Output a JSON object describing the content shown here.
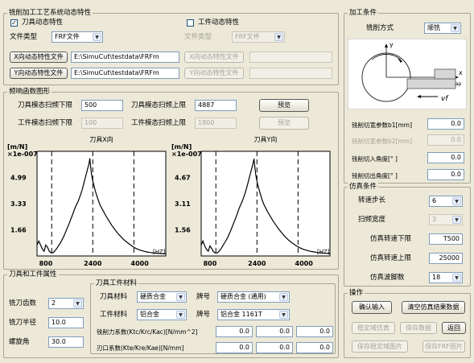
{
  "left_top": {
    "group_title": "铣削加工工艺系统动态特性",
    "tool_dynamic": {
      "checked": true,
      "label": "刀具动态特性"
    },
    "workpiece_dynamic": {
      "checked": false,
      "label": "工件动态特性"
    },
    "file_type_label": "文件类型",
    "file_type_value": "FRF文件",
    "wp_file_type_label": "文件类型",
    "wp_file_type_value": "FRF文件",
    "x_file_button": "X向动态特性文件",
    "x_file_path": "E:\\SimuCut\\testdata\\FRFm",
    "y_file_button": "Y向动态特性文件",
    "y_file_path": "E:\\SimuCut\\testdata\\FRFm",
    "wp_x_file_button": "X向动态特性文件",
    "wp_y_file_button": "Y向动态特性文件"
  },
  "frf": {
    "group_title": "频响函数图形",
    "tool_low_label": "刀具模态扫频下限",
    "tool_low_value": "500",
    "tool_high_label": "刀具模态扫频上限",
    "tool_high_value": "4887",
    "preview_button": "预览",
    "wp_low_label": "工件模态扫频下限",
    "wp_low_value": "100",
    "wp_high_label": "工件模态扫频上限",
    "wp_high_value": "1800",
    "wp_preview_button": "预览"
  },
  "chart_data": [
    {
      "type": "line",
      "title": "刀具X向",
      "ylabel_unit": "[m/N]",
      "ylabel_scale": "×1e-007",
      "xlabel": "[HZ]",
      "y_ticks": [
        "4.99",
        "3.33",
        "1.66"
      ],
      "x_ticks": [
        "800",
        "2400",
        "4000"
      ],
      "xlim": [
        500,
        4887
      ],
      "ylim": [
        0,
        6.7
      ],
      "dashed_x": [
        1000,
        2400,
        3800
      ],
      "x": [
        500,
        560,
        620,
        680,
        740,
        800,
        860,
        920,
        980,
        1040,
        1120,
        1200,
        1300,
        1400,
        1500,
        1600,
        1700,
        1800,
        1900,
        1980,
        2040,
        2100,
        2160,
        2220,
        2270,
        2300,
        2330,
        2360,
        2400,
        2440,
        2480,
        2530,
        2580,
        2650,
        2750,
        2850,
        2950,
        3050,
        3150,
        3250,
        3350,
        3450,
        3550,
        3650,
        3750,
        3850,
        3950,
        4050,
        4150,
        4250,
        4350,
        4450,
        4550,
        4650,
        4750,
        4887
      ],
      "y": [
        0.7,
        0.95,
        0.7,
        0.45,
        0.3,
        0.7,
        0.55,
        0.3,
        0.2,
        0.2,
        0.35,
        0.55,
        0.85,
        1.2,
        1.65,
        2.1,
        2.6,
        3.1,
        3.5,
        3.9,
        4.25,
        4.7,
        5.1,
        5.55,
        5.9,
        6.25,
        5.7,
        5.2,
        4.8,
        4.5,
        4.2,
        3.9,
        3.6,
        3.25,
        2.9,
        2.55,
        2.25,
        1.95,
        1.7,
        1.45,
        1.25,
        1.05,
        0.9,
        0.75,
        0.62,
        0.5,
        0.42,
        0.35,
        0.3,
        0.25,
        0.22,
        0.2,
        0.18,
        0.16,
        0.15,
        0.14
      ]
    },
    {
      "type": "line",
      "title": "刀具Y向",
      "ylabel_unit": "[m/N]",
      "ylabel_scale": "×1e-007",
      "xlabel": "[HZ]",
      "y_ticks": [
        "4.67",
        "3.11",
        "1.56"
      ],
      "x_ticks": [
        "800",
        "2400",
        "4000"
      ],
      "xlim": [
        500,
        4887
      ],
      "ylim": [
        0,
        6.3
      ],
      "dashed_x": [
        1000,
        2400,
        3800
      ],
      "x": [
        500,
        560,
        620,
        680,
        740,
        800,
        860,
        920,
        980,
        1040,
        1120,
        1200,
        1300,
        1400,
        1500,
        1600,
        1700,
        1800,
        1900,
        1980,
        2040,
        2100,
        2160,
        2220,
        2270,
        2300,
        2330,
        2360,
        2400,
        2440,
        2480,
        2530,
        2580,
        2650,
        2750,
        2850,
        2950,
        3050,
        3150,
        3250,
        3350,
        3450,
        3550,
        3650,
        3750,
        3850,
        3950,
        4050,
        4150,
        4250,
        4350,
        4450,
        4550,
        4650,
        4750,
        4887
      ],
      "y": [
        0.65,
        0.9,
        0.6,
        0.4,
        0.28,
        0.6,
        0.45,
        0.25,
        0.18,
        0.18,
        0.3,
        0.5,
        0.8,
        1.1,
        1.5,
        1.95,
        2.4,
        2.9,
        3.3,
        3.7,
        4.05,
        4.45,
        4.85,
        5.25,
        5.6,
        5.85,
        5.35,
        4.9,
        4.5,
        4.2,
        3.95,
        3.65,
        3.35,
        3.05,
        2.7,
        2.4,
        2.1,
        1.85,
        1.6,
        1.38,
        1.18,
        1.0,
        0.85,
        0.72,
        0.6,
        0.5,
        0.42,
        0.36,
        0.31,
        0.27,
        0.24,
        0.21,
        0.19,
        0.17,
        0.16,
        0.15
      ]
    }
  ],
  "tool_wp": {
    "group_title": "刀具和工件属性",
    "teeth_label": "铣刀齿数",
    "teeth_value": "2",
    "radius_label": "铣刀半径",
    "radius_value": "10.0",
    "helix_label": "螺旋角",
    "helix_value": "30.0",
    "material_group_title": "刀具工件材料",
    "tool_material_label": "刀具材料",
    "tool_material_value": "硬质合金",
    "tool_grade_label": "牌号",
    "tool_grade_value": "硬质合金 (通用)",
    "wp_material_label": "工件材料",
    "wp_material_value": "铝合金",
    "wp_grade_label": "牌号",
    "wp_grade_value": "铝合金 1161T",
    "force_coef_label": "铣削力系数(Ktc/Krc/Kac)[N/mm^2]",
    "force_coef_values": [
      "0.0",
      "0.0",
      "0.0"
    ],
    "edge_coef_label": "刃口系数(Kte/Kre/Kae)[N/mm]",
    "edge_coef_values": [
      "0.0",
      "0.0",
      "0.0"
    ]
  },
  "machining": {
    "group_title": "加工条件",
    "mode_label": "铣削方式",
    "mode_value": "顺铣",
    "diagram": {
      "y_label": "y",
      "x_label": "x",
      "feed_label": "vf",
      "axial_label": "ap"
    },
    "width_b1_label": "铣削切宽参数b1[mm]",
    "width_b1_value": "0.0",
    "width_b2_label": "铣削切宽参数b2[mm]",
    "width_b2_value": "0.0",
    "entry_angle_label": "铣削切入角度[° ]",
    "entry_angle_value": "0.0",
    "exit_angle_label": "铣削切出角度[° ]",
    "exit_angle_value": "0.0"
  },
  "simulation": {
    "group_title": "仿真条件",
    "speed_step_label": "转速步长",
    "speed_step_value": "6",
    "sweep_width_label": "扫频宽度",
    "sweep_width_value": "3",
    "speed_low_label": "仿真转速下限",
    "speed_low_value": "T500",
    "speed_high_label": "仿真转速上限",
    "speed_high_value": "25000",
    "waves_label": "仿真波脚数",
    "waves_value": "18"
  },
  "operations": {
    "group_title": "操作",
    "confirm_button": "确认输入",
    "clear_button": "清空仿真结果数据",
    "stability_sim_button": "稳定域仿真",
    "save_data_button": "保存数据",
    "back_button": "返回",
    "save_stability_img_button": "保存稳定域图片",
    "save_frf_img_button": "保存FRF图片"
  }
}
